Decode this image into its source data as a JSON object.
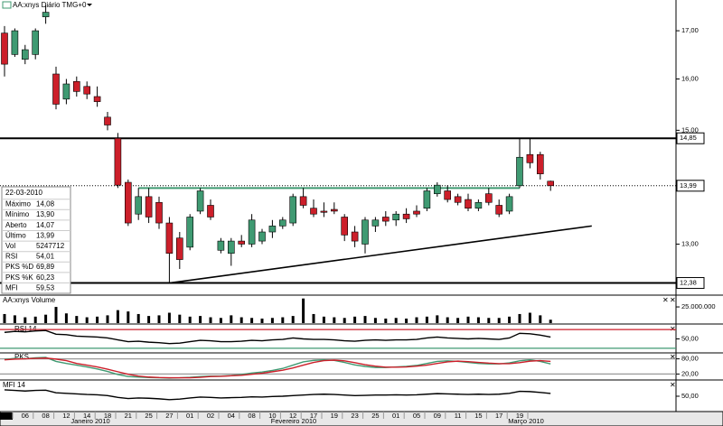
{
  "chart_data": [
    {
      "type": "candlestick",
      "title": "AA:xnys Diário TMG+0",
      "categories": [
        "2010",
        null,
        "06",
        null,
        "08",
        null,
        "12",
        null,
        "14",
        null,
        "18",
        null,
        "21",
        null,
        "25",
        null,
        "27",
        null,
        "01",
        null,
        "02",
        null,
        "04",
        null,
        "08",
        null,
        "10",
        null,
        "12",
        null,
        "17",
        null,
        "19",
        null,
        "23",
        null,
        "25",
        null,
        "01",
        null,
        "05",
        null,
        "09",
        null,
        "11",
        null,
        "15",
        null,
        "17",
        null,
        "19",
        null,
        null,
        null
      ],
      "month_labels": [
        "Janeiro 2010",
        "Fevereiro 2010",
        "Março 2010"
      ],
      "open": [
        16.95,
        16.5,
        16.4,
        16.5,
        17.3,
        16.1,
        15.6,
        15.95,
        15.85,
        15.65,
        15.25,
        14.85,
        14.05,
        13.5,
        13.8,
        13.7,
        13.35,
        13.1,
        12.95,
        13.55,
        13.65,
        12.9,
        12.85,
        13.05,
        13.0,
        13.05,
        13.2,
        13.3,
        13.35,
        13.8,
        13.6,
        13.55,
        13.58,
        13.45,
        13.2,
        13.0,
        13.3,
        13.45,
        13.4,
        13.5,
        13.55,
        13.6,
        13.85,
        13.9,
        13.8,
        13.75,
        13.6,
        13.85,
        13.65,
        13.55,
        13.99,
        14.55,
        14.55,
        14.07
      ],
      "high": [
        17.1,
        17.05,
        16.7,
        17.05,
        17.55,
        16.25,
        16.0,
        16.05,
        15.95,
        15.85,
        15.35,
        14.95,
        14.1,
        13.95,
        13.95,
        13.8,
        13.45,
        13.2,
        13.5,
        13.95,
        13.75,
        13.1,
        13.1,
        13.15,
        13.5,
        13.25,
        13.4,
        13.45,
        13.85,
        13.95,
        13.75,
        13.7,
        13.7,
        13.5,
        13.3,
        13.45,
        13.45,
        13.55,
        13.55,
        13.6,
        13.65,
        13.95,
        14.05,
        14.0,
        13.85,
        13.85,
        13.75,
        13.95,
        13.75,
        13.85,
        14.85,
        14.85,
        14.6,
        14.08
      ],
      "low": [
        16.05,
        16.45,
        16.3,
        16.4,
        17.15,
        15.4,
        15.5,
        15.65,
        15.6,
        15.45,
        15.0,
        13.95,
        13.3,
        13.4,
        13.35,
        13.25,
        12.38,
        12.6,
        12.9,
        13.5,
        13.4,
        12.85,
        12.65,
        12.95,
        12.95,
        13.0,
        13.1,
        13.25,
        13.3,
        13.6,
        13.45,
        13.45,
        13.5,
        13.05,
        12.95,
        12.85,
        13.2,
        13.3,
        13.3,
        13.35,
        13.45,
        13.55,
        13.8,
        13.7,
        13.65,
        13.55,
        13.55,
        13.65,
        13.45,
        13.5,
        13.95,
        14.3,
        14.1,
        13.9
      ],
      "close": [
        16.3,
        17.0,
        16.6,
        17.0,
        17.4,
        15.5,
        15.9,
        15.75,
        15.7,
        15.55,
        15.1,
        14.0,
        13.35,
        13.8,
        13.45,
        13.35,
        12.85,
        12.75,
        13.45,
        13.9,
        13.45,
        13.05,
        13.05,
        13.0,
        13.4,
        13.2,
        13.3,
        13.4,
        13.8,
        13.65,
        13.5,
        13.53,
        13.55,
        13.15,
        13.05,
        13.4,
        13.4,
        13.38,
        13.5,
        13.42,
        13.5,
        13.9,
        14.0,
        13.75,
        13.7,
        13.6,
        13.7,
        13.7,
        13.5,
        13.8,
        14.5,
        14.4,
        14.2,
        13.99
      ],
      "up_color": "#3f9a72",
      "down_color": "#cc1f2a",
      "log_scale": true,
      "ylim": [
        12.22,
        17.67
      ],
      "yticks": [
        {
          "value": 17,
          "label": "17,00"
        },
        {
          "value": 16,
          "label": "16,00"
        },
        {
          "value": 15,
          "label": "15,00"
        },
        {
          "value": 13,
          "label": "13,00"
        }
      ],
      "hlines": [
        {
          "value": 14.85,
          "label": "14,85",
          "color": "#000000"
        },
        {
          "value": 12.38,
          "label": "12,38",
          "color": "#000000"
        },
        {
          "value": 13.99,
          "label": "13,99",
          "color": "#000000",
          "style": "dotted"
        },
        {
          "value": 13.95,
          "color": "#3f9a72",
          "from": 13,
          "to": 50
        }
      ],
      "trendline": {
        "x": [
          16,
          57
        ],
        "values": [
          12.38,
          13.3
        ],
        "color": "#000000"
      }
    },
    {
      "type": "bar",
      "title": "AA:xnys Volume",
      "color": "#000000",
      "values": [
        14000000,
        12000000,
        9000000,
        10000000,
        13000000,
        25000000,
        15000000,
        11000000,
        9000000,
        10000000,
        12000000,
        20000000,
        18000000,
        14000000,
        11000000,
        12000000,
        16000000,
        13000000,
        10000000,
        11000000,
        9000000,
        8000000,
        12000000,
        9000000,
        8000000,
        7000000,
        8000000,
        9000000,
        11000000,
        38000000,
        14000000,
        10000000,
        9000000,
        8000000,
        10000000,
        11000000,
        8000000,
        7000000,
        8000000,
        7000000,
        9000000,
        10000000,
        12000000,
        9000000,
        8000000,
        10000000,
        9000000,
        8000000,
        8000000,
        10000000,
        14000000,
        16000000,
        12000000,
        5247712
      ],
      "ylim": [
        0,
        39000000
      ],
      "yticks": [
        {
          "value": 25000000,
          "label": "25.000.000"
        }
      ]
    },
    {
      "type": "line",
      "title": "RSI 14",
      "color": "#000000",
      "values": [
        64,
        66,
        65,
        67,
        68,
        60,
        59,
        56,
        55,
        54,
        52,
        48,
        44,
        45,
        43,
        42,
        40,
        41,
        44,
        47,
        46,
        44,
        44,
        45,
        47,
        46,
        48,
        49,
        52,
        50,
        49,
        49,
        48,
        46,
        45,
        47,
        48,
        47,
        48,
        48,
        49,
        52,
        54,
        52,
        51,
        50,
        51,
        50,
        49,
        52,
        62,
        61,
        58,
        54.01
      ],
      "ylim": [
        22,
        78
      ],
      "yticks": [
        {
          "value": 50,
          "label": "50,00"
        }
      ],
      "levels": [
        {
          "value": 70,
          "color": "#cc1f2a"
        },
        {
          "value": 30,
          "color": "#3f9a72"
        }
      ]
    },
    {
      "type": "line",
      "title": "PKS",
      "series": [
        {
          "color": "#3f9a72",
          "values": [
            78,
            82,
            80,
            84,
            86,
            70,
            62,
            55,
            48,
            40,
            30,
            18,
            10,
            8,
            6,
            5,
            4,
            5,
            7,
            10,
            12,
            12,
            14,
            18,
            24,
            28,
            34,
            42,
            55,
            68,
            74,
            76,
            74,
            66,
            56,
            50,
            46,
            46,
            48,
            50,
            54,
            62,
            70,
            72,
            70,
            66,
            62,
            60,
            60,
            64,
            72,
            76,
            70,
            60.23
          ]
        },
        {
          "color": "#cc1f2a",
          "values": [
            76,
            79,
            80,
            82,
            83,
            79,
            73,
            62,
            55,
            48,
            39,
            29,
            19,
            12,
            8,
            6,
            5,
            5,
            5,
            7,
            10,
            11,
            13,
            15,
            19,
            23,
            29,
            35,
            44,
            55,
            66,
            73,
            75,
            72,
            65,
            57,
            51,
            47,
            47,
            48,
            51,
            55,
            62,
            68,
            71,
            69,
            66,
            63,
            61,
            61,
            65,
            71,
            73,
            69.89
          ]
        }
      ],
      "ylim": [
        0,
        100
      ],
      "yticks": [
        {
          "value": 80,
          "label": "80,00"
        },
        {
          "value": 20,
          "label": "20,00"
        }
      ],
      "levels": [
        {
          "value": 80,
          "color": "#999999"
        },
        {
          "value": 20,
          "color": "#999999"
        }
      ]
    },
    {
      "type": "line",
      "title": "MFI 14",
      "color": "#000000",
      "values": [
        72,
        70,
        68,
        70,
        71,
        62,
        60,
        58,
        56,
        55,
        52,
        46,
        42,
        44,
        43,
        41,
        38,
        40,
        44,
        47,
        46,
        44,
        45,
        46,
        48,
        47,
        49,
        50,
        52,
        54,
        56,
        57,
        56,
        54,
        52,
        53,
        54,
        54,
        55,
        54,
        55,
        57,
        59,
        58,
        57,
        56,
        57,
        56,
        57,
        60,
        67,
        66,
        63,
        59.53
      ],
      "ylim": [
        0,
        100
      ],
      "yticks": [
        {
          "value": 50,
          "label": "50,00"
        }
      ]
    }
  ],
  "info_box": {
    "date": "22-03-2010",
    "rows": [
      {
        "label": "Máximo",
        "value": "14,08"
      },
      {
        "label": "Mínimo",
        "value": "13,90"
      },
      {
        "label": "Aberto",
        "value": "14,07"
      },
      {
        "label": "Último",
        "value": "13,99"
      },
      {
        "label": "Vol",
        "value": "5247712"
      },
      {
        "label": "RSI",
        "value": "54,01"
      },
      {
        "label": "PKS %D",
        "value": "69,89",
        "color": "#cc1f2a"
      },
      {
        "label": "PKS %K",
        "value": "60,23",
        "color": "#777777"
      },
      {
        "label": "MFI",
        "value": "59,53"
      }
    ]
  }
}
